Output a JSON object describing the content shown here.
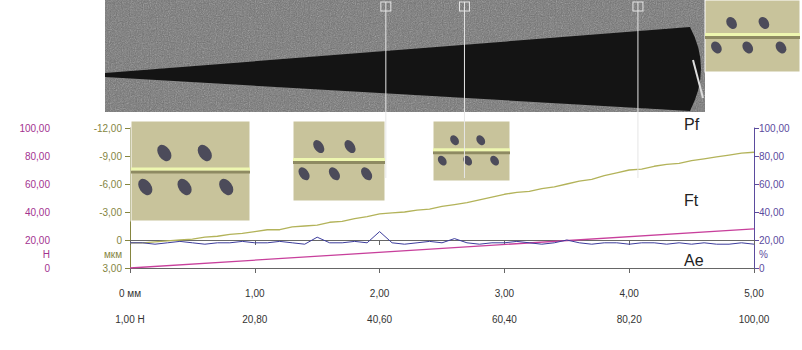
{
  "chart_data": {
    "type": "line",
    "x": [
      0,
      0.1,
      0.2,
      0.3,
      0.4,
      0.5,
      0.6,
      0.7,
      0.8,
      0.9,
      1,
      1.1,
      1.2,
      1.3,
      1.4,
      1.5,
      1.6,
      1.7,
      1.8,
      1.9,
      2,
      2.1,
      2.2,
      2.3,
      2.4,
      2.5,
      2.6,
      2.7,
      2.8,
      2.9,
      3,
      3.1,
      3.2,
      3.3,
      3.4,
      3.5,
      3.6,
      3.7,
      3.8,
      3.9,
      4,
      4.1,
      4.2,
      4.3,
      4.4,
      4.5,
      4.6,
      4.7,
      4.8,
      4.9,
      5
    ],
    "xlim": [
      0,
      5
    ],
    "xticks": [
      {
        "value": 0,
        "label": "0 мм"
      },
      {
        "value": 1,
        "label": "1,00"
      },
      {
        "value": 2,
        "label": "2,00"
      },
      {
        "value": 3,
        "label": "3,00"
      },
      {
        "value": 4,
        "label": "4,00"
      },
      {
        "value": 5,
        "label": "5,00"
      }
    ],
    "x2lim": [
      1,
      100
    ],
    "x2ticks": [
      {
        "value": 1,
        "label": "1,00 Н"
      },
      {
        "value": 20.8,
        "label": "20,80"
      },
      {
        "value": 40.6,
        "label": "40,60"
      },
      {
        "value": 60.4,
        "label": "60,40"
      },
      {
        "value": 80.2,
        "label": "80,20"
      },
      {
        "value": 100,
        "label": "100,00"
      }
    ],
    "ylim": [
      0,
      100
    ],
    "yticks": [
      0,
      {
        "value": 20,
        "label": "20,00"
      },
      {
        "value": 40,
        "label": "40,00"
      },
      {
        "value": 60,
        "label": "60,00"
      },
      {
        "value": 80,
        "label": "80,00"
      },
      {
        "value": 100,
        "label": "100,00"
      }
    ],
    "y_label": "Н",
    "y2lim": [
      3,
      -12
    ],
    "y2ticks": [
      {
        "value": -12,
        "label": "-12,00"
      },
      {
        "value": -9,
        "label": "-9,00"
      },
      {
        "value": -6,
        "label": "-6,00"
      },
      {
        "value": -3,
        "label": "-3,00"
      },
      0,
      {
        "value": 3,
        "label": "3,00"
      }
    ],
    "y2_label": "мкм",
    "y3lim": [
      0,
      100
    ],
    "y3ticks": [
      0,
      {
        "value": 20,
        "label": "20,00"
      },
      {
        "value": 40,
        "label": "40,00"
      },
      {
        "value": 60,
        "label": "60,00"
      },
      {
        "value": 80,
        "label": "80,00"
      },
      {
        "value": 100,
        "label": "100,00"
      }
    ],
    "y3_label": "%",
    "x_marks": [
      2.05,
      2.68,
      4.07
    ],
    "grid": false,
    "series": [
      {
        "name": "Pf",
        "color": "#b3b35a",
        "axis": "y2",
        "values": [
          0.3,
          0.3,
          0.2,
          0.1,
          0.0,
          -0.1,
          -0.3,
          -0.4,
          -0.6,
          -0.7,
          -0.9,
          -1.1,
          -1.1,
          -1.4,
          -1.5,
          -1.6,
          -1.9,
          -2.0,
          -2.3,
          -2.5,
          -2.8,
          -2.9,
          -3.0,
          -3.2,
          -3.3,
          -3.6,
          -3.8,
          -4.0,
          -4.3,
          -4.6,
          -4.9,
          -5.1,
          -5.2,
          -5.5,
          -5.7,
          -6.0,
          -6.3,
          -6.5,
          -6.9,
          -7.2,
          -7.5,
          -7.6,
          -7.9,
          -8.1,
          -8.2,
          -8.5,
          -8.7,
          -8.9,
          -9.1,
          -9.3,
          -9.4
        ]
      },
      {
        "name": "Ft",
        "color": "#c8409c",
        "axis": "y",
        "x": [
          0,
          5
        ],
        "values": [
          0,
          28
        ]
      },
      {
        "name": "Ae",
        "color": "#3c3c9c",
        "axis": "y3",
        "values": [
          18,
          18,
          17,
          18,
          19,
          18,
          17,
          18,
          18,
          19,
          18,
          18,
          19,
          18,
          17,
          22,
          18,
          18,
          19,
          18,
          26,
          18,
          17,
          18,
          19,
          18,
          21,
          18,
          17,
          18,
          18,
          19,
          18,
          17,
          18,
          20,
          18,
          17,
          18,
          18,
          17,
          18,
          18,
          17,
          18,
          17,
          18,
          17,
          17,
          18,
          17
        ]
      }
    ]
  }
}
